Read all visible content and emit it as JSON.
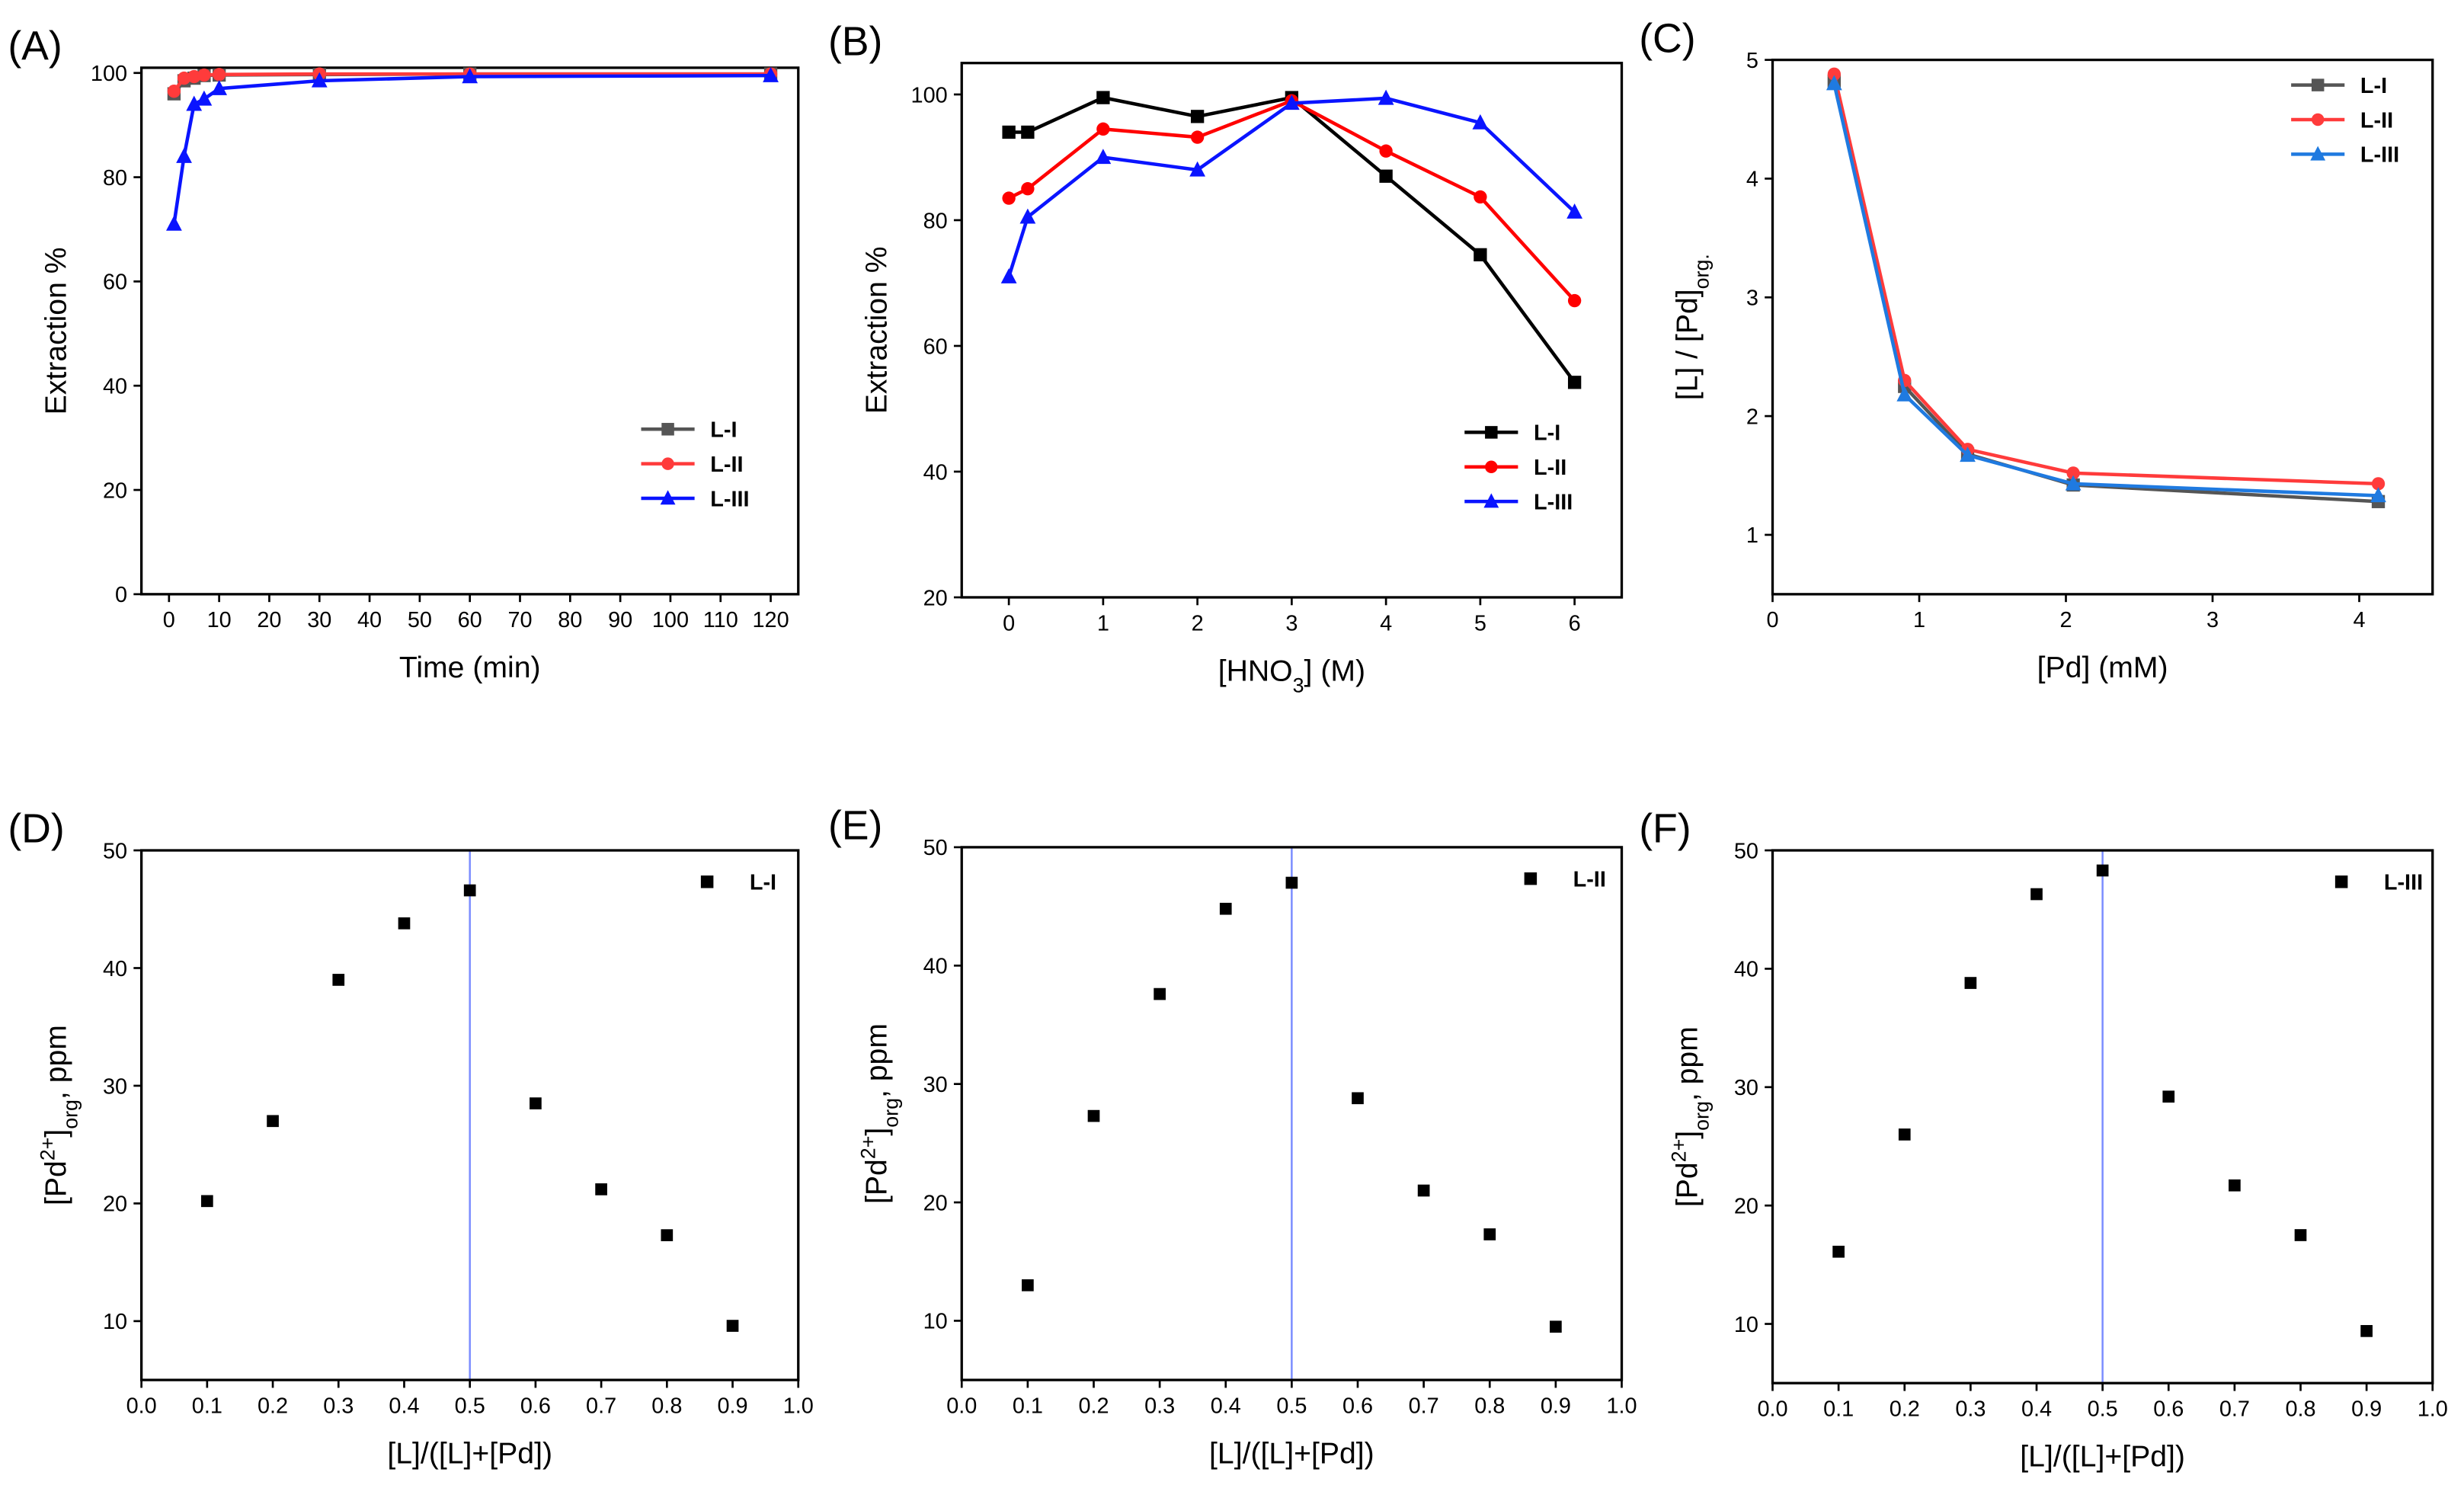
{
  "chart_data": [
    {
      "id": "A",
      "letter": "(A)",
      "type": "line",
      "xlabel": [
        {
          "t": "Time (min)"
        }
      ],
      "ylabel": [
        {
          "t": "Extraction %"
        }
      ],
      "xlim": [
        -5.5,
        125.5
      ],
      "ylim": [
        0,
        101
      ],
      "xticks": [
        0,
        10,
        20,
        30,
        40,
        50,
        60,
        70,
        80,
        90,
        100,
        110,
        120
      ],
      "yticks": [
        0,
        20,
        40,
        60,
        80,
        100
      ],
      "legend": "bottom-right",
      "grid": false,
      "series": [
        {
          "name": "L-I",
          "color": "#555555",
          "marker": "square",
          "x": [
            1,
            3,
            5,
            7,
            10,
            30,
            60,
            120
          ],
          "y": [
            96,
            98.5,
            99,
            99.5,
            99.6,
            99.7,
            99.8,
            99.8
          ]
        },
        {
          "name": "L-II",
          "color": "#ff3b3b",
          "marker": "circle",
          "x": [
            1,
            3,
            5,
            7,
            10,
            30,
            60,
            120
          ],
          "y": [
            96.5,
            99,
            99.3,
            99.6,
            99.7,
            99.8,
            99.8,
            99.8
          ]
        },
        {
          "name": "L-III",
          "color": "#0a14ff",
          "marker": "triangle",
          "x": [
            1,
            3,
            5,
            7,
            10,
            30,
            60,
            120
          ],
          "y": [
            71,
            84,
            94,
            95,
            97,
            98.5,
            99.3,
            99.5
          ]
        }
      ]
    },
    {
      "id": "B",
      "letter": "(B)",
      "type": "line",
      "xlabel": [
        {
          "t": "[HNO"
        },
        {
          "t": "3",
          "s": "sub"
        },
        {
          "t": "] (M)"
        }
      ],
      "ylabel": [
        {
          "t": "Extraction %"
        }
      ],
      "xlim": [
        -0.5,
        6.5
      ],
      "ylim": [
        20,
        105
      ],
      "xticks": [
        0,
        1,
        2,
        3,
        4,
        5,
        6
      ],
      "yticks": [
        20,
        40,
        60,
        80,
        100
      ],
      "legend": "bottom-right",
      "grid": false,
      "series": [
        {
          "name": "L-I",
          "color": "#000000",
          "marker": "square",
          "x": [
            0,
            0.2,
            1,
            2,
            3,
            4,
            5,
            6
          ],
          "y": [
            94,
            94,
            99.5,
            96.5,
            99.5,
            87,
            74.5,
            54.2
          ]
        },
        {
          "name": "L-II",
          "color": "#ff0000",
          "marker": "circle",
          "x": [
            0,
            0.2,
            1,
            2,
            3,
            4,
            5,
            6
          ],
          "y": [
            83.5,
            85,
            94.5,
            93.2,
            99,
            91,
            83.7,
            67.2
          ]
        },
        {
          "name": "L-III",
          "color": "#0a14ff",
          "marker": "triangle",
          "x": [
            0,
            0.2,
            1,
            2,
            3,
            4,
            5,
            6
          ],
          "y": [
            71,
            80.5,
            90,
            88,
            98.6,
            99.4,
            95.5,
            81.3
          ]
        }
      ]
    },
    {
      "id": "C",
      "letter": "(C)",
      "type": "line",
      "xlabel": [
        {
          "t": "[Pd] (mM)"
        }
      ],
      "ylabel": [
        {
          "t": "[L] / [Pd]"
        },
        {
          "t": "org.",
          "s": "sub"
        }
      ],
      "xlim": [
        0,
        4.5
      ],
      "ylim": [
        0.5,
        5
      ],
      "xticks": [
        0,
        1,
        2,
        3,
        4
      ],
      "yticks": [
        1,
        2,
        3,
        4,
        5
      ],
      "legend": "top-right",
      "grid": false,
      "series": [
        {
          "name": "L-I",
          "color": "#555555",
          "marker": "square",
          "x": [
            0.42,
            0.9,
            1.33,
            2.05,
            4.13
          ],
          "y": [
            4.82,
            2.25,
            1.68,
            1.42,
            1.28
          ]
        },
        {
          "name": "L-II",
          "color": "#ff3b3b",
          "marker": "circle",
          "x": [
            0.42,
            0.9,
            1.33,
            2.05,
            4.13
          ],
          "y": [
            4.88,
            2.3,
            1.72,
            1.52,
            1.43
          ]
        },
        {
          "name": "L-III",
          "color": "#1f7ae0",
          "marker": "triangle",
          "x": [
            0.42,
            0.9,
            1.33,
            2.05,
            4.13
          ],
          "y": [
            4.8,
            2.18,
            1.67,
            1.43,
            1.33
          ]
        }
      ]
    },
    {
      "id": "D",
      "letter": "(D)",
      "type": "scatter",
      "xlabel": [
        {
          "t": "[L]/([L]+[Pd])"
        }
      ],
      "ylabel": [
        {
          "t": "[Pd"
        },
        {
          "t": "2+",
          "s": "sup"
        },
        {
          "t": "]"
        },
        {
          "t": "org",
          "s": "sub"
        },
        {
          "t": ", ppm"
        }
      ],
      "xlim": [
        0,
        1
      ],
      "ylim": [
        5,
        50
      ],
      "xticks": [
        0,
        0.1,
        0.2,
        0.3,
        0.4,
        0.5,
        0.6,
        0.7,
        0.8,
        0.9,
        1.0
      ],
      "yticks": [
        10,
        20,
        30,
        40,
        50
      ],
      "legend": "top-right",
      "grid": false,
      "vline": 0.5,
      "vline_color": "#7a8cff",
      "series": [
        {
          "name": "L-I",
          "color": "#000000",
          "marker": "square",
          "x": [
            0.1,
            0.2,
            0.3,
            0.4,
            0.5,
            0.6,
            0.7,
            0.8,
            0.9
          ],
          "y": [
            20.2,
            27,
            39,
            43.8,
            46.6,
            28.5,
            21.2,
            17.3,
            9.6
          ]
        }
      ]
    },
    {
      "id": "E",
      "letter": "(E)",
      "type": "scatter",
      "xlabel": [
        {
          "t": "[L]/([L]+[Pd])"
        }
      ],
      "ylabel": [
        {
          "t": "[Pd"
        },
        {
          "t": "2+",
          "s": "sup"
        },
        {
          "t": "]"
        },
        {
          "t": "org",
          "s": "sub"
        },
        {
          "t": ", ppm"
        }
      ],
      "xlim": [
        0,
        1
      ],
      "ylim": [
        5,
        50
      ],
      "xticks": [
        0,
        0.1,
        0.2,
        0.3,
        0.4,
        0.5,
        0.6,
        0.7,
        0.8,
        0.9,
        1.0
      ],
      "yticks": [
        10,
        20,
        30,
        40,
        50
      ],
      "legend": "top-right",
      "grid": false,
      "vline": 0.5,
      "vline_color": "#7a8cff",
      "series": [
        {
          "name": "L-II",
          "color": "#000000",
          "marker": "square",
          "x": [
            0.1,
            0.2,
            0.3,
            0.4,
            0.5,
            0.6,
            0.7,
            0.8,
            0.9
          ],
          "y": [
            13,
            27.3,
            37.6,
            44.8,
            47,
            28.8,
            21,
            17.3,
            9.5
          ]
        }
      ]
    },
    {
      "id": "F",
      "letter": "(F)",
      "type": "scatter",
      "xlabel": [
        {
          "t": "[L]/([L]+[Pd])"
        }
      ],
      "ylabel": [
        {
          "t": "[Pd"
        },
        {
          "t": "2+",
          "s": "sup"
        },
        {
          "t": "]"
        },
        {
          "t": "org",
          "s": "sub"
        },
        {
          "t": ", ppm"
        }
      ],
      "xlim": [
        0,
        1
      ],
      "ylim": [
        5,
        50
      ],
      "xticks": [
        0,
        0.1,
        0.2,
        0.3,
        0.4,
        0.5,
        0.6,
        0.7,
        0.8,
        0.9,
        1.0
      ],
      "yticks": [
        10,
        20,
        30,
        40,
        50
      ],
      "legend": "top-right",
      "grid": false,
      "vline": 0.5,
      "vline_color": "#7a8cff",
      "series": [
        {
          "name": "L-III",
          "color": "#000000",
          "marker": "square",
          "x": [
            0.1,
            0.2,
            0.3,
            0.4,
            0.5,
            0.6,
            0.7,
            0.8,
            0.9
          ],
          "y": [
            16.1,
            26,
            38.8,
            46.3,
            48.3,
            29.2,
            21.7,
            17.5,
            9.4
          ]
        }
      ]
    }
  ]
}
